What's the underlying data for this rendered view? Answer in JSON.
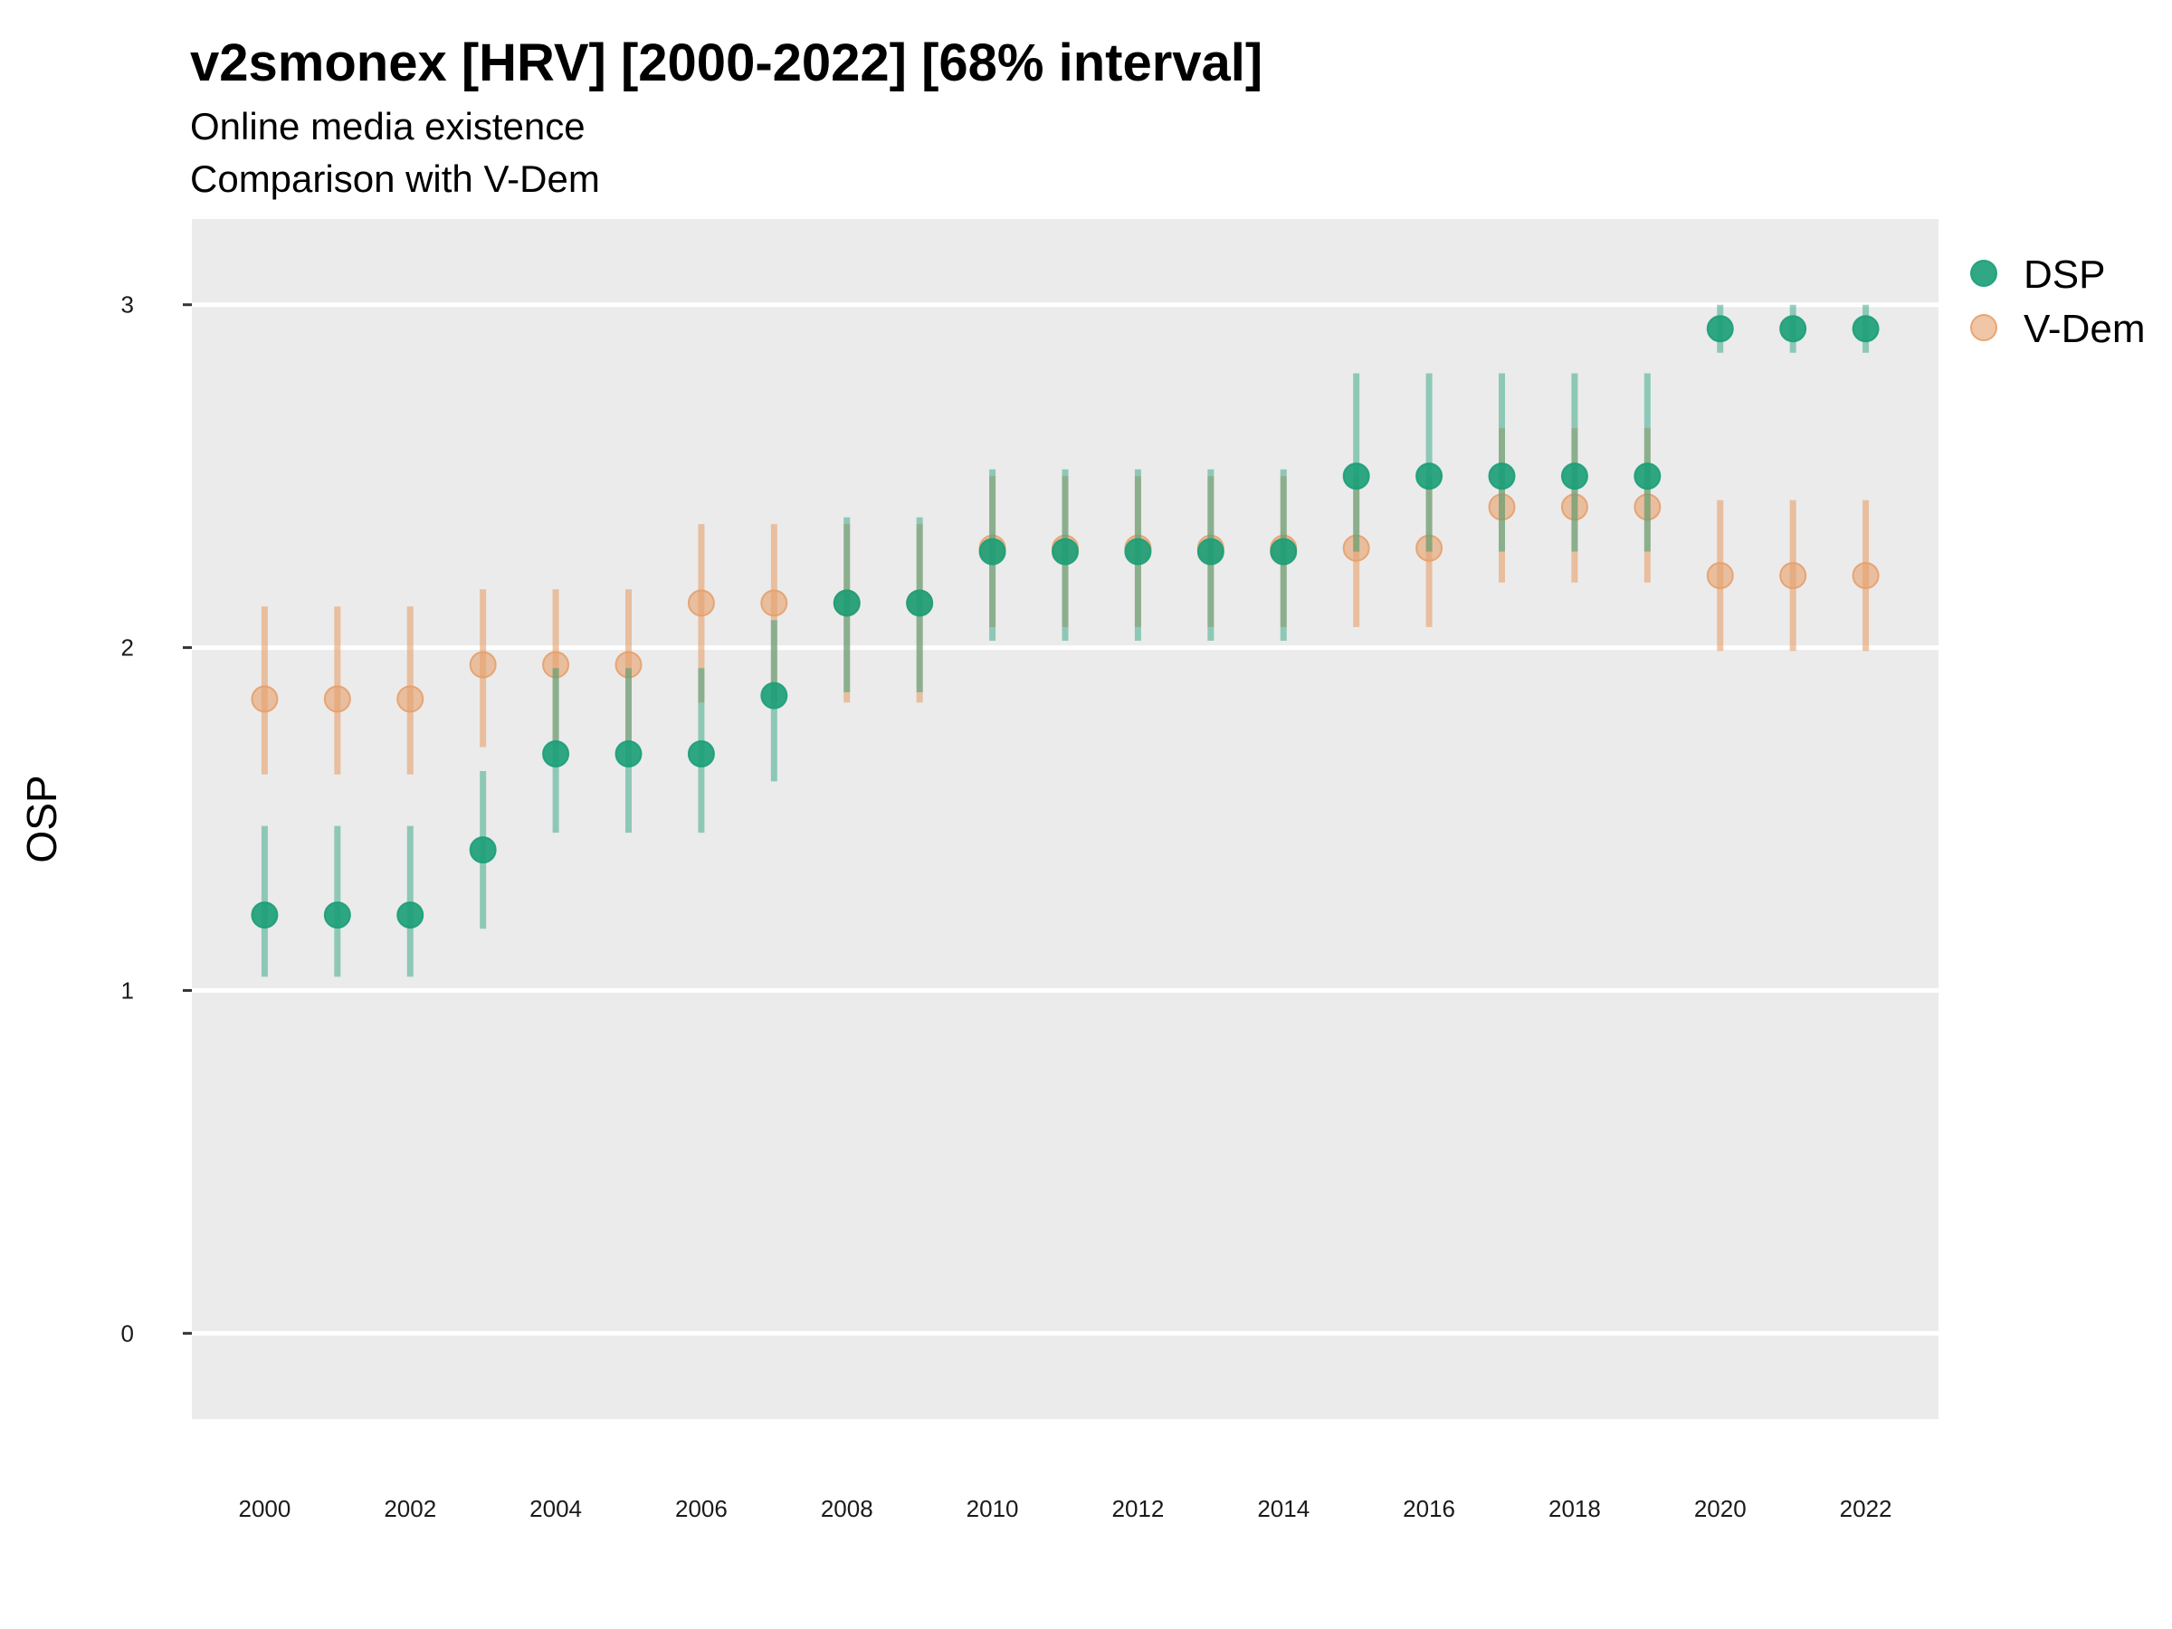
{
  "title": "v2smonex [HRV] [2000-2022] [68% interval]",
  "subtitle_lines": [
    "Online media existence",
    "Comparison with V-Dem"
  ],
  "colors": {
    "DSP": "#1b9e77",
    "V-Dem": "#e6a06b",
    "panel": "#ebebeb",
    "grid": "#ffffff"
  },
  "chart_data": {
    "type": "scatter",
    "title": "v2smonex [HRV] [2000-2022] [68% interval]",
    "subtitle": "Online media existence / Comparison with V-Dem",
    "xlabel": "",
    "ylabel": "OSP",
    "xlim": [
      1999,
      2023
    ],
    "ylim": [
      -0.25,
      3.25
    ],
    "x_ticks": [
      2000,
      2002,
      2004,
      2006,
      2008,
      2010,
      2012,
      2014,
      2016,
      2018,
      2020,
      2022
    ],
    "y_ticks": [
      0,
      1,
      2,
      3
    ],
    "grid": true,
    "legend_position": "right",
    "x": [
      2000,
      2001,
      2002,
      2003,
      2004,
      2005,
      2006,
      2007,
      2008,
      2009,
      2010,
      2011,
      2012,
      2013,
      2014,
      2015,
      2016,
      2017,
      2018,
      2019,
      2020,
      2021,
      2022
    ],
    "series": [
      {
        "name": "DSP",
        "color": "#1b9e77",
        "values": [
          1.22,
          1.22,
          1.22,
          1.41,
          1.69,
          1.69,
          1.69,
          1.86,
          2.13,
          2.13,
          2.28,
          2.28,
          2.28,
          2.28,
          2.28,
          2.5,
          2.5,
          2.5,
          2.5,
          2.5,
          2.93,
          2.93,
          2.93
        ],
        "lower": [
          1.04,
          1.04,
          1.04,
          1.18,
          1.46,
          1.46,
          1.46,
          1.61,
          1.87,
          1.87,
          2.02,
          2.02,
          2.02,
          2.02,
          2.02,
          2.28,
          2.28,
          2.28,
          2.28,
          2.28,
          2.86,
          2.86,
          2.86
        ],
        "upper": [
          1.48,
          1.48,
          1.48,
          1.64,
          1.94,
          1.94,
          1.94,
          2.08,
          2.38,
          2.38,
          2.52,
          2.52,
          2.52,
          2.52,
          2.52,
          2.8,
          2.8,
          2.8,
          2.8,
          2.8,
          3.0,
          3.0,
          3.0
        ]
      },
      {
        "name": "V-Dem",
        "color": "#e6a06b",
        "values": [
          1.85,
          1.85,
          1.85,
          1.95,
          1.95,
          1.95,
          2.13,
          2.13,
          2.13,
          2.13,
          2.29,
          2.29,
          2.29,
          2.29,
          2.29,
          2.29,
          2.29,
          2.41,
          2.41,
          2.41,
          2.21,
          2.21,
          2.21
        ],
        "lower": [
          1.63,
          1.63,
          1.63,
          1.71,
          1.71,
          1.71,
          1.84,
          1.84,
          1.84,
          1.84,
          2.06,
          2.06,
          2.06,
          2.06,
          2.06,
          2.06,
          2.06,
          2.19,
          2.19,
          2.19,
          1.99,
          1.99,
          1.99
        ],
        "upper": [
          2.12,
          2.12,
          2.12,
          2.17,
          2.17,
          2.17,
          2.36,
          2.36,
          2.36,
          2.36,
          2.5,
          2.5,
          2.5,
          2.5,
          2.5,
          2.5,
          2.5,
          2.64,
          2.64,
          2.64,
          2.43,
          2.43,
          2.43
        ]
      }
    ]
  }
}
